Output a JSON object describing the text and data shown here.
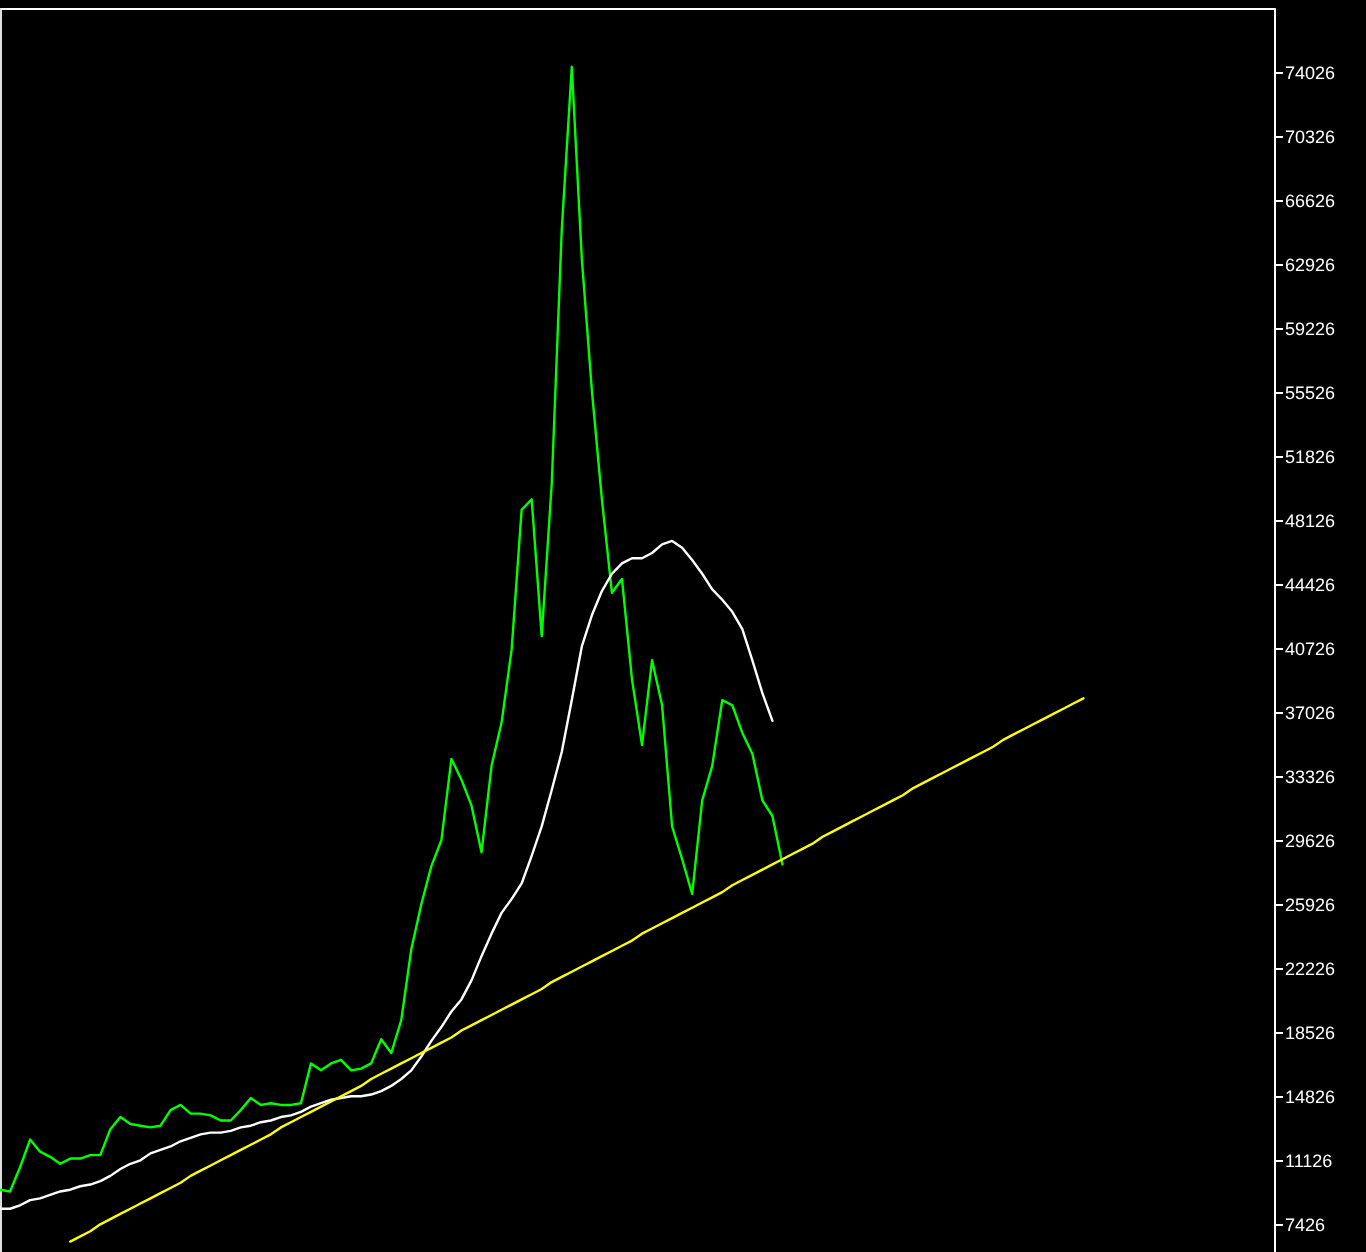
{
  "chart_data": {
    "type": "line",
    "categories": [
      null,
      null,
      null,
      null,
      null,
      null,
      null,
      null,
      null,
      null,
      null,
      null,
      null,
      null,
      null,
      null,
      null,
      null,
      null,
      null,
      null,
      null,
      null,
      null,
      null,
      null,
      null,
      null,
      null,
      null,
      null,
      null,
      null,
      null,
      null,
      null,
      null,
      null,
      null,
      null,
      null,
      null,
      null,
      null,
      null,
      null,
      null,
      null,
      null,
      null,
      null,
      null,
      null,
      null,
      null,
      null,
      null,
      null,
      null,
      null,
      null,
      null,
      null,
      null,
      null,
      null,
      null,
      null,
      null,
      null,
      null,
      null,
      null,
      null,
      null,
      null,
      null,
      null,
      null,
      null,
      null,
      null,
      null,
      null,
      null,
      null,
      null,
      null,
      null,
      null,
      null,
      null,
      null,
      null,
      null,
      null,
      null,
      null,
      null,
      null,
      null,
      null,
      null,
      null,
      null,
      null,
      null,
      null,
      null,
      null,
      null,
      null,
      null,
      null,
      null,
      null,
      null,
      null,
      null,
      null,
      null,
      null,
      null,
      null,
      null,
      null,
      null,
      null
    ],
    "series": [
      {
        "color": "#00ff00",
        "values": [
          9400,
          9300,
          10700,
          12300,
          11600,
          11300,
          10900,
          11200,
          11200,
          11400,
          11400,
          12900,
          13600,
          13200,
          13100,
          13000,
          13100,
          14000,
          14300,
          13800,
          13800,
          13700,
          13400,
          13400,
          14000,
          14700,
          14300,
          14400,
          14300,
          14300,
          14400,
          16700,
          16300,
          16700,
          16900,
          16300,
          16400,
          16700,
          18100,
          17300,
          19200,
          23300,
          25900,
          28100,
          29600,
          34300,
          33100,
          31600,
          28900,
          33900,
          36400,
          40600,
          48700,
          49300,
          41400,
          50200,
          64900,
          74300,
          63200,
          55600,
          49300,
          43900,
          44700,
          38900,
          35100,
          40000,
          37400,
          30400,
          28500,
          26500,
          31900,
          33900,
          37700,
          37400,
          35800,
          34600,
          31900,
          31000,
          28200,
          null,
          null,
          null,
          null,
          null,
          null,
          null,
          null,
          null,
          null,
          null,
          null,
          null,
          null,
          null,
          null,
          null,
          null,
          null,
          null,
          null,
          null,
          null,
          null,
          null,
          null,
          null,
          null,
          null,
          null,
          null,
          null,
          null,
          null,
          null,
          null,
          null,
          null,
          null,
          null,
          null,
          null,
          null,
          null,
          null,
          null,
          null,
          null,
          null
        ]
      },
      {
        "color": "#ffffff",
        "values": [
          8300,
          8300,
          8500,
          8800,
          8900,
          9100,
          9300,
          9400,
          9600,
          9700,
          9900,
          10200,
          10600,
          10900,
          11100,
          11500,
          11700,
          11900,
          12200,
          12400,
          12600,
          12700,
          12700,
          12800,
          13000,
          13100,
          13300,
          13400,
          13600,
          13700,
          13900,
          14200,
          14400,
          14600,
          14700,
          14800,
          14800,
          14900,
          15100,
          15400,
          15800,
          16300,
          17100,
          18000,
          18800,
          19700,
          20400,
          21500,
          22900,
          24200,
          25400,
          26200,
          27100,
          28700,
          30400,
          32500,
          34700,
          37700,
          40800,
          42600,
          44000,
          45000,
          45600,
          45900,
          45900,
          46200,
          46700,
          46900,
          46500,
          45800,
          45000,
          44100,
          43500,
          42800,
          41800,
          40000,
          38100,
          36500,
          null,
          null,
          null,
          null,
          null,
          null,
          null,
          null,
          null,
          null,
          null,
          null,
          null,
          null,
          null,
          null,
          null,
          null,
          null,
          null,
          null,
          null,
          null,
          null,
          null,
          null,
          null,
          null,
          null,
          null,
          null,
          null,
          null,
          null,
          null,
          null,
          null,
          null,
          null,
          null,
          null,
          null,
          null,
          null,
          null,
          null,
          null,
          null,
          null,
          null
        ]
      },
      {
        "color": "#ffff00",
        "values": [
          null,
          null,
          null,
          null,
          null,
          null,
          null,
          6400,
          6700,
          7000,
          7400,
          7700,
          8000,
          8300,
          8600,
          8900,
          9200,
          9500,
          9800,
          10200,
          10500,
          10800,
          11100,
          11400,
          11700,
          12000,
          12300,
          12600,
          13000,
          13300,
          13600,
          13900,
          14200,
          14500,
          14800,
          15100,
          15400,
          15800,
          16100,
          16400,
          16700,
          17000,
          17300,
          17600,
          17900,
          18200,
          18600,
          18900,
          19200,
          19500,
          19800,
          20100,
          20400,
          20700,
          21000,
          21400,
          21700,
          22000,
          22300,
          22600,
          22900,
          23200,
          23500,
          23800,
          24200,
          24500,
          24800,
          25100,
          25400,
          25700,
          26000,
          26300,
          26600,
          27000,
          27300,
          27600,
          27900,
          28200,
          28500,
          28800,
          29100,
          29400,
          29800,
          30100,
          30400,
          30700,
          31000,
          31300,
          31600,
          31900,
          32200,
          32600,
          32900,
          33200,
          33500,
          33800,
          34100,
          34400,
          34700,
          35000,
          35400,
          35700,
          36000,
          36300,
          36600,
          36900,
          37200,
          37500,
          37800,
          null,
          null,
          null,
          null,
          null,
          null,
          null,
          null,
          null,
          null,
          null,
          null,
          null,
          null,
          null,
          null,
          null,
          null,
          null
        ]
      }
    ],
    "ylim": [
      5800,
      77700
    ],
    "yticks": [
      7426,
      11126,
      14826,
      18526,
      22226,
      25926,
      29626,
      33326,
      37026,
      40726,
      44426,
      48126,
      51826,
      55526,
      59226,
      62926,
      66626,
      70326,
      74026
    ],
    "tick_labels": "y",
    "grid": false,
    "legend": false
  }
}
